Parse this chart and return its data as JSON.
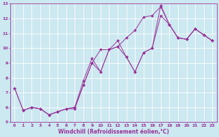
{
  "xlabel": "Windchill (Refroidissement éolien,°C)",
  "bg_color": "#cce8f0",
  "line_color": "#993399",
  "grid_color": "#ffffff",
  "xlim": [
    -0.5,
    23.5
  ],
  "ylim": [
    5,
    13
  ],
  "xticks": [
    0,
    1,
    2,
    3,
    4,
    5,
    6,
    7,
    8,
    9,
    10,
    11,
    12,
    13,
    14,
    15,
    16,
    17,
    18,
    19,
    20,
    21,
    22,
    23
  ],
  "yticks": [
    5,
    6,
    7,
    8,
    9,
    10,
    11,
    12,
    13
  ],
  "series": [
    {
      "x": [
        0,
        1,
        2,
        3,
        4,
        5,
        6,
        7,
        8,
        9,
        10,
        11,
        12,
        13,
        14,
        15,
        16,
        17,
        18,
        19,
        20,
        21,
        22,
        23
      ],
      "y": [
        7.3,
        5.8,
        6.0,
        5.9,
        5.5,
        5.7,
        5.9,
        5.9,
        7.5,
        9.0,
        9.9,
        9.9,
        10.1,
        10.7,
        11.2,
        12.1,
        12.2,
        12.8,
        11.6,
        10.7,
        10.6,
        11.3,
        10.9,
        10.5
      ]
    },
    {
      "x": [
        0,
        1,
        2,
        3,
        4,
        5,
        6,
        7,
        8,
        9,
        10,
        11,
        12,
        13,
        14,
        15,
        16,
        17,
        18,
        19,
        20,
        21,
        22,
        23
      ],
      "y": [
        7.3,
        5.8,
        6.0,
        5.9,
        5.5,
        5.7,
        5.9,
        6.0,
        7.8,
        9.3,
        8.4,
        9.9,
        10.5,
        9.4,
        8.4,
        9.7,
        10.0,
        12.9,
        11.6,
        10.7,
        10.6,
        11.3,
        10.9,
        10.5
      ]
    },
    {
      "x": [
        1,
        2,
        3,
        4,
        5,
        6,
        7,
        8,
        9,
        10,
        11,
        12,
        13,
        14,
        15,
        16,
        17,
        18,
        19,
        20,
        21,
        22,
        23
      ],
      "y": [
        5.8,
        6.0,
        5.9,
        5.5,
        5.7,
        5.9,
        6.0,
        7.5,
        9.0,
        8.4,
        9.9,
        10.1,
        9.4,
        8.4,
        9.7,
        10.0,
        12.2,
        11.6,
        10.7,
        10.6,
        11.3,
        10.9,
        10.5
      ]
    }
  ],
  "xlabel_fontsize": 5.5,
  "tick_fontsize": 4.5
}
